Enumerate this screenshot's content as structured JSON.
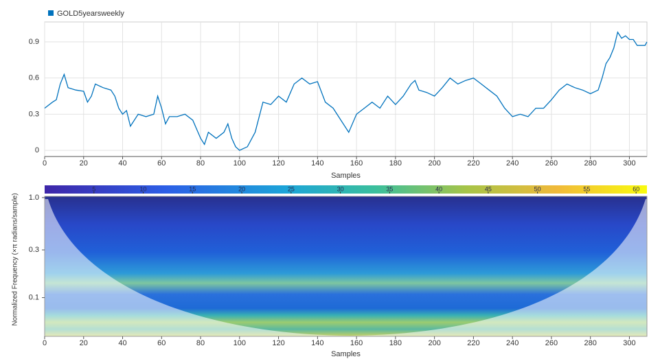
{
  "chart_data": [
    {
      "type": "line",
      "series": [
        {
          "name": "GOLD5yearsweekly",
          "color": "#0072bd",
          "x": [
            0,
            4,
            6,
            8,
            10,
            12,
            16,
            20,
            22,
            24,
            26,
            30,
            34,
            36,
            38,
            40,
            42,
            44,
            48,
            52,
            56,
            58,
            60,
            62,
            64,
            68,
            72,
            76,
            80,
            82,
            84,
            88,
            92,
            94,
            96,
            98,
            100,
            104,
            108,
            112,
            116,
            120,
            124,
            128,
            132,
            136,
            140,
            144,
            148,
            152,
            156,
            160,
            164,
            168,
            172,
            176,
            180,
            184,
            188,
            190,
            192,
            196,
            200,
            204,
            208,
            212,
            216,
            220,
            224,
            228,
            232,
            236,
            240,
            244,
            248,
            252,
            256,
            260,
            264,
            268,
            272,
            276,
            280,
            284,
            286,
            288,
            290,
            292,
            294,
            296,
            298,
            300,
            302,
            304,
            308,
            309
          ],
          "values": [
            0.35,
            0.4,
            0.42,
            0.55,
            0.63,
            0.52,
            0.5,
            0.49,
            0.4,
            0.45,
            0.55,
            0.52,
            0.5,
            0.45,
            0.35,
            0.3,
            0.33,
            0.2,
            0.3,
            0.28,
            0.3,
            0.45,
            0.35,
            0.22,
            0.28,
            0.28,
            0.3,
            0.25,
            0.1,
            0.05,
            0.15,
            0.1,
            0.15,
            0.22,
            0.1,
            0.03,
            0,
            0.03,
            0.15,
            0.4,
            0.38,
            0.45,
            0.4,
            0.55,
            0.6,
            0.55,
            0.57,
            0.4,
            0.35,
            0.25,
            0.15,
            0.3,
            0.35,
            0.4,
            0.35,
            0.45,
            0.38,
            0.45,
            0.55,
            0.58,
            0.5,
            0.48,
            0.45,
            0.52,
            0.6,
            0.55,
            0.58,
            0.6,
            0.55,
            0.5,
            0.45,
            0.35,
            0.28,
            0.3,
            0.28,
            0.35,
            0.35,
            0.42,
            0.5,
            0.55,
            0.52,
            0.5,
            0.47,
            0.5,
            0.6,
            0.72,
            0.77,
            0.85,
            0.98,
            0.93,
            0.95,
            0.92,
            0.92,
            0.87,
            0.87,
            0.9
          ]
        }
      ],
      "xlabel": "Samples",
      "xlim": [
        0,
        309
      ],
      "xticks": [
        0,
        20,
        40,
        60,
        80,
        100,
        120,
        140,
        160,
        180,
        200,
        220,
        240,
        260,
        280,
        300
      ],
      "ylim": [
        -0.051,
        1.065
      ],
      "yticks": [
        0,
        0.3,
        0.6,
        0.9
      ],
      "grid": true
    },
    {
      "type": "scalogram",
      "xlabel": "Samples",
      "ylabel": "Normalized Frequency (×π radians/sample)",
      "xlim": [
        0,
        309
      ],
      "xticks": [
        0,
        20,
        40,
        60,
        80,
        100,
        120,
        140,
        160,
        180,
        200,
        220,
        240,
        260,
        280,
        300
      ],
      "ylim": [
        0.041,
        1.03
      ],
      "yscale": "log",
      "yticks": [
        {
          "value": 1,
          "label": "1.0"
        },
        0.3,
        0.1
      ],
      "clim": [
        0,
        61.1
      ],
      "cticks": [
        5,
        10,
        15,
        20,
        25,
        30,
        35,
        40,
        45,
        50,
        55,
        60
      ]
    }
  ]
}
